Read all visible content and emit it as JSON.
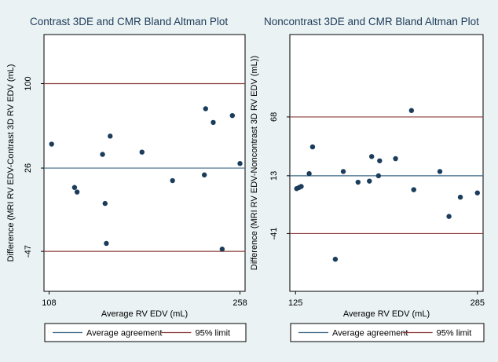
{
  "colors": {
    "background": "#eaf2f3",
    "plot_background": "#ffffff",
    "agreement_line": "#3f6a8a",
    "limit_line": "#8c3b3b",
    "marker": "#1b3d5c"
  },
  "chart_data": [
    {
      "type": "scatter",
      "title": "Contrast 3DE and CMR Bland Altman Plot",
      "xlabel": "Average RV EDV (mL)",
      "ylabel": "Difference (MRI RV EDV-Contrast 3D RV EDV (mL)",
      "xlim": [
        104,
        262
      ],
      "ylim": [
        -82,
        143
      ],
      "xticks": [
        108,
        258
      ],
      "yticks": [
        -47,
        26,
        100
      ],
      "mean_difference": 26,
      "limits_of_agreement": [
        -47,
        100
      ],
      "points": [
        {
          "x": 110,
          "y": 47
        },
        {
          "x": 128,
          "y": 9
        },
        {
          "x": 130,
          "y": 5
        },
        {
          "x": 150,
          "y": 38
        },
        {
          "x": 152,
          "y": -5
        },
        {
          "x": 153,
          "y": -40
        },
        {
          "x": 156,
          "y": 54
        },
        {
          "x": 181,
          "y": 40
        },
        {
          "x": 205,
          "y": 15
        },
        {
          "x": 230,
          "y": 20
        },
        {
          "x": 231,
          "y": 78
        },
        {
          "x": 237,
          "y": 66
        },
        {
          "x": 244,
          "y": -45
        },
        {
          "x": 252,
          "y": 72
        },
        {
          "x": 258,
          "y": 30
        }
      ],
      "legend": {
        "placement": "bottom",
        "entries": [
          "Average agreement",
          "95% limit"
        ]
      }
    },
    {
      "type": "scatter",
      "title": "Noncontrast 3DE and CMR Bland Altman Plot",
      "xlabel": "Average RV EDV (mL)",
      "ylabel": "Difference (MRI RV EDV-Noncontrast 3D RV EDV (mL))",
      "xlim": [
        120,
        290
      ],
      "ylim": [
        -95,
        145
      ],
      "xticks": [
        125,
        285
      ],
      "yticks": [
        -41,
        13,
        68
      ],
      "mean_difference": 13,
      "limits_of_agreement": [
        -41,
        68
      ],
      "points": [
        {
          "x": 126,
          "y": 1
        },
        {
          "x": 128,
          "y": 2
        },
        {
          "x": 130,
          "y": 3
        },
        {
          "x": 137,
          "y": 15
        },
        {
          "x": 140,
          "y": 40
        },
        {
          "x": 160,
          "y": -65
        },
        {
          "x": 167,
          "y": 17
        },
        {
          "x": 180,
          "y": 7
        },
        {
          "x": 190,
          "y": 8
        },
        {
          "x": 192,
          "y": 31
        },
        {
          "x": 198,
          "y": 13
        },
        {
          "x": 199,
          "y": 27
        },
        {
          "x": 213,
          "y": 29
        },
        {
          "x": 227,
          "y": 74
        },
        {
          "x": 229,
          "y": 0
        },
        {
          "x": 252,
          "y": 17
        },
        {
          "x": 260,
          "y": -25
        },
        {
          "x": 270,
          "y": -7
        },
        {
          "x": 285,
          "y": -3
        }
      ],
      "legend": {
        "placement": "bottom",
        "entries": [
          "Average agreement",
          "95% limit"
        ]
      }
    }
  ]
}
